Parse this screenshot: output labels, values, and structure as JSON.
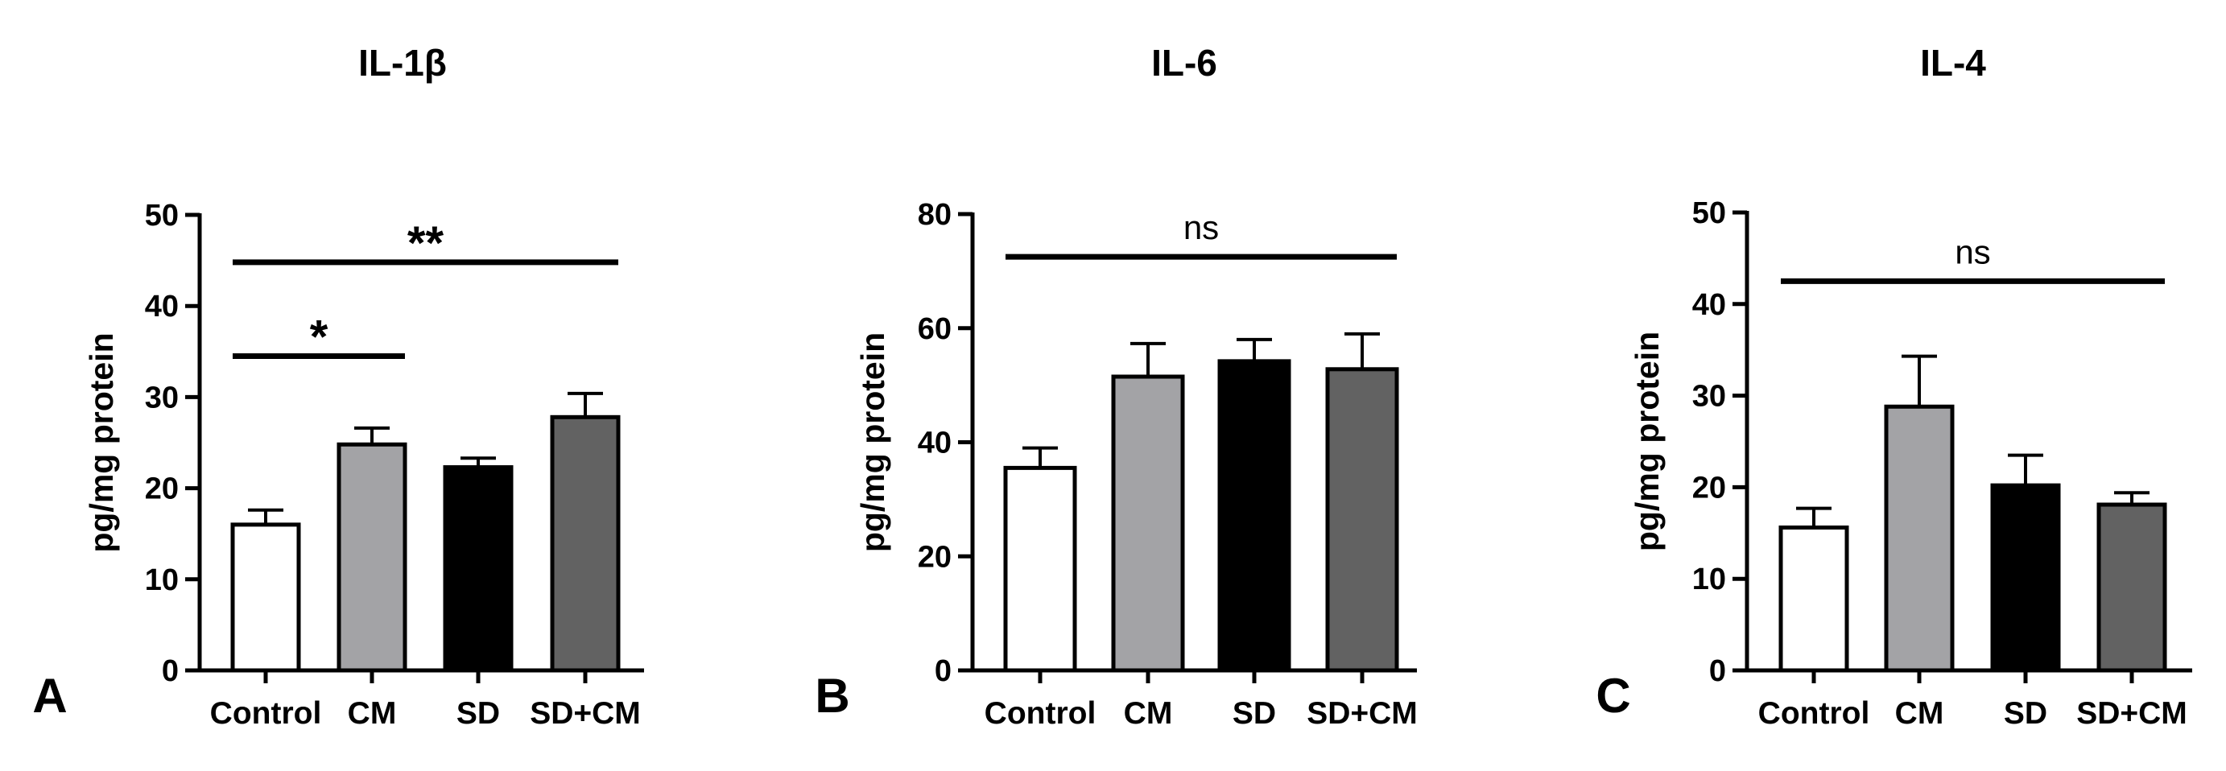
{
  "chart_data": [
    {
      "type": "bar",
      "panel": "A",
      "title": "IL-1β",
      "ylabel": "pg/mg protein",
      "xlabel": "",
      "ylim": [
        0,
        50
      ],
      "yticks": [
        0,
        10,
        20,
        30,
        40,
        50
      ],
      "ytick_labels": [
        "0",
        "10",
        "20",
        "30",
        "40",
        "50"
      ],
      "categories": [
        "Control",
        "CM",
        "SD",
        "SD+CM"
      ],
      "values": [
        16,
        24.8,
        22.3,
        27.8
      ],
      "errors": [
        1.6,
        1.8,
        1.0,
        2.6
      ],
      "colors": [
        "#ffffff",
        "#a3a3a6",
        "#000000",
        "#626262"
      ],
      "significance": [
        {
          "from": 0,
          "to": 3,
          "label": "**",
          "level": 44.8
        },
        {
          "from": 0,
          "to": 1,
          "label": "*",
          "level": 34.5
        }
      ]
    },
    {
      "type": "bar",
      "panel": "B",
      "title": "IL-6",
      "ylabel": "pg/mg protein",
      "xlabel": "",
      "ylim": [
        0,
        80
      ],
      "yticks": [
        0,
        20,
        40,
        60,
        80
      ],
      "ytick_labels": [
        "0",
        "20",
        "40",
        "60",
        "80"
      ],
      "categories": [
        "Control",
        "CM",
        "SD",
        "SD+CM"
      ],
      "values": [
        35.5,
        51.5,
        54.2,
        52.8
      ],
      "errors": [
        3.5,
        5.8,
        3.8,
        6.2
      ],
      "colors": [
        "#ffffff",
        "#a3a3a6",
        "#000000",
        "#626262"
      ],
      "significance": [
        {
          "from": 0,
          "to": 3,
          "label": "ns",
          "level": 72.5
        }
      ]
    },
    {
      "type": "bar",
      "panel": "C",
      "title": "IL-4",
      "ylabel": "pg/mg protein",
      "xlabel": "",
      "ylim": [
        0,
        50
      ],
      "yticks": [
        0,
        10,
        20,
        30,
        40,
        50
      ],
      "ytick_labels": [
        "0",
        "10",
        "20",
        "30",
        "40",
        "50"
      ],
      "categories": [
        "Control",
        "CM",
        "SD",
        "SD+CM"
      ],
      "values": [
        15.6,
        28.8,
        20.2,
        18.1
      ],
      "errors": [
        2.1,
        5.5,
        3.3,
        1.3
      ],
      "colors": [
        "#ffffff",
        "#a3a3a6",
        "#000000",
        "#626262"
      ],
      "significance": [
        {
          "from": 0,
          "to": 3,
          "label": "ns",
          "level": 42.5
        }
      ]
    }
  ]
}
